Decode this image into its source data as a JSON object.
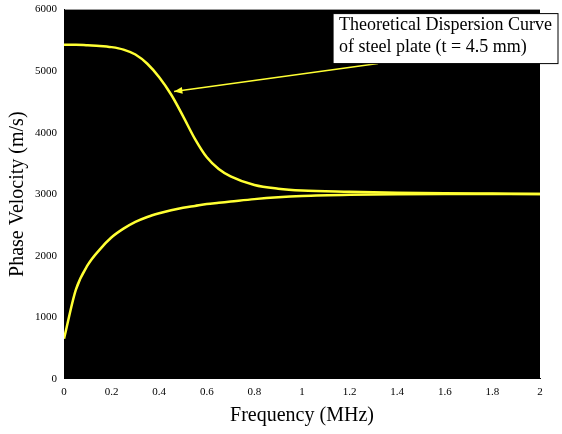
{
  "chart_data": {
    "type": "line",
    "x_label": "Frequency (MHz)",
    "y_label": "Phase Velocity (m/s)",
    "annotation": [
      "Theoretical Dispersion Curve",
      "of steel plate (t = 4.5 mm)"
    ],
    "x": [
      0,
      0.05,
      0.1,
      0.15,
      0.2,
      0.25,
      0.3,
      0.35,
      0.4,
      0.45,
      0.5,
      0.55,
      0.6,
      0.65,
      0.7,
      0.8,
      0.9,
      1.0,
      1.2,
      1.4,
      1.6,
      1.8,
      2.0
    ],
    "series": [
      {
        "color": "#ffff33",
        "values": [
          5430,
          5430,
          5420,
          5410,
          5390,
          5350,
          5270,
          5120,
          4900,
          4620,
          4270,
          3900,
          3600,
          3410,
          3290,
          3150,
          3090,
          3060,
          3040,
          3025,
          3015,
          3010,
          3005
        ]
      },
      {
        "color": "#ffff33",
        "values": [
          650,
          1450,
          1850,
          2100,
          2300,
          2440,
          2550,
          2630,
          2690,
          2740,
          2780,
          2810,
          2840,
          2860,
          2880,
          2920,
          2950,
          2970,
          2990,
          3000,
          3005,
          3005,
          3005
        ]
      }
    ],
    "xlim": [
      0,
      2
    ],
    "xticks": [
      0,
      0.2,
      0.4,
      0.6,
      0.8,
      1,
      1.2,
      1.4,
      1.6,
      1.8,
      2
    ],
    "ylim": [
      0,
      6000
    ],
    "yticks": [
      0,
      1000,
      2000,
      3000,
      4000,
      5000,
      6000
    ],
    "grid": false
  }
}
